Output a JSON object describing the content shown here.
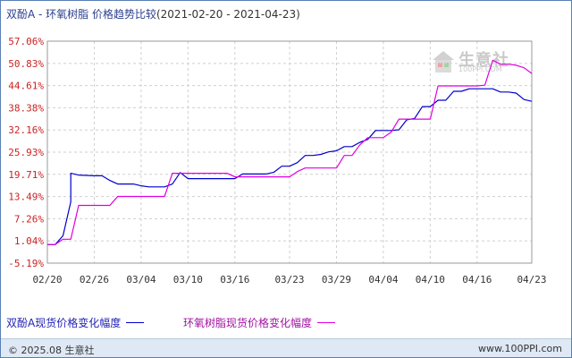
{
  "header": {
    "title": "双酚A - 环氧树脂 价格趋势比较",
    "date_range": "(2021-02-20 - 2021-04-23)"
  },
  "watermark": {
    "brand": "生意社",
    "url": "100PPI.COM"
  },
  "footer": {
    "copyright": "© 2025.08 生意社",
    "url": "www.100PPI.com"
  },
  "colors": {
    "bpa": "#0000cc",
    "epoxy": "#e000e0",
    "grid": "#cfcfcf",
    "axis_label": "#cc2222"
  },
  "chart_data": {
    "type": "line",
    "title": "双酚A - 环氧树脂 价格趋势比较",
    "xlabel": "",
    "ylabel": "",
    "y_ticks": [
      "57.06%",
      "50.83%",
      "44.61%",
      "38.38%",
      "32.16%",
      "25.93%",
      "19.71%",
      "13.49%",
      "7.26%",
      "1.04%",
      "-5.19%"
    ],
    "y_tick_values": [
      57.06,
      50.83,
      44.61,
      38.38,
      32.16,
      25.93,
      19.71,
      13.49,
      7.26,
      1.04,
      -5.19
    ],
    "ylim": [
      -5.19,
      57.06
    ],
    "x_ticks": [
      "02/20",
      "02/26",
      "03/04",
      "03/10",
      "03/16",
      "03/23",
      "03/29",
      "04/04",
      "04/10",
      "04/16",
      "04/23"
    ],
    "x_tick_values": [
      "2021-02-20",
      "2021-02-26",
      "2021-03-04",
      "2021-03-10",
      "2021-03-16",
      "2021-03-23",
      "2021-03-29",
      "2021-04-04",
      "2021-04-10",
      "2021-04-16",
      "2021-04-23"
    ],
    "xlim": [
      "2021-02-20",
      "2021-04-23"
    ],
    "grid": true,
    "legend": "bottom",
    "series": [
      {
        "name": "双酚A现货价格变化幅度",
        "points": [
          [
            "2021-02-20",
            0
          ],
          [
            "2021-02-21",
            0
          ],
          [
            "2021-02-22",
            2.5
          ],
          [
            "2021-02-23",
            12
          ],
          [
            "2021-02-23",
            20
          ],
          [
            "2021-02-24",
            19.5
          ],
          [
            "2021-02-26",
            19.3
          ],
          [
            "2021-02-27",
            19.3
          ],
          [
            "2021-02-28",
            18
          ],
          [
            "2021-03-01",
            17
          ],
          [
            "2021-03-03",
            17
          ],
          [
            "2021-03-04",
            16.5
          ],
          [
            "2021-03-05",
            16.2
          ],
          [
            "2021-03-07",
            16.2
          ],
          [
            "2021-03-08",
            17
          ],
          [
            "2021-03-09",
            20.2
          ],
          [
            "2021-03-10",
            18.5
          ],
          [
            "2021-03-12",
            18.5
          ],
          [
            "2021-03-16",
            18.5
          ],
          [
            "2021-03-17",
            19.8
          ],
          [
            "2021-03-20",
            19.8
          ],
          [
            "2021-03-21",
            20.3
          ],
          [
            "2021-03-22",
            22
          ],
          [
            "2021-03-23",
            22
          ],
          [
            "2021-03-24",
            23
          ],
          [
            "2021-03-25",
            25
          ],
          [
            "2021-03-26",
            25
          ],
          [
            "2021-03-27",
            25.3
          ],
          [
            "2021-03-28",
            26
          ],
          [
            "2021-03-29",
            26.3
          ],
          [
            "2021-03-30",
            27.5
          ],
          [
            "2021-03-31",
            27.5
          ],
          [
            "2021-04-01",
            28.7
          ],
          [
            "2021-04-02",
            29.5
          ],
          [
            "2021-04-03",
            32
          ],
          [
            "2021-04-04",
            32
          ],
          [
            "2021-04-05",
            32
          ],
          [
            "2021-04-06",
            32.2
          ],
          [
            "2021-04-07",
            35
          ],
          [
            "2021-04-08",
            35.4
          ],
          [
            "2021-04-09",
            38.7
          ],
          [
            "2021-04-10",
            38.7
          ],
          [
            "2021-04-11",
            40.5
          ],
          [
            "2021-04-12",
            40.5
          ],
          [
            "2021-04-13",
            43
          ],
          [
            "2021-04-14",
            43
          ],
          [
            "2021-04-15",
            43.7
          ],
          [
            "2021-04-16",
            43.7
          ],
          [
            "2021-04-18",
            43.7
          ],
          [
            "2021-04-19",
            42.8
          ],
          [
            "2021-04-20",
            42.8
          ],
          [
            "2021-04-21",
            42.5
          ],
          [
            "2021-04-22",
            40.7
          ],
          [
            "2021-04-23",
            40.2
          ]
        ]
      },
      {
        "name": "环氧树脂现货价格变化幅度",
        "points": [
          [
            "2021-02-20",
            0
          ],
          [
            "2021-02-21",
            0
          ],
          [
            "2021-02-22",
            1.5
          ],
          [
            "2021-02-23",
            1.5
          ],
          [
            "2021-02-24",
            11
          ],
          [
            "2021-02-25",
            11
          ],
          [
            "2021-02-27",
            11
          ],
          [
            "2021-02-28",
            11
          ],
          [
            "2021-03-01",
            13.5
          ],
          [
            "2021-03-03",
            13.5
          ],
          [
            "2021-03-05",
            13.5
          ],
          [
            "2021-03-07",
            13.5
          ],
          [
            "2021-03-08",
            20
          ],
          [
            "2021-03-10",
            20
          ],
          [
            "2021-03-12",
            20
          ],
          [
            "2021-03-15",
            20
          ],
          [
            "2021-03-16",
            19
          ],
          [
            "2021-03-17",
            19
          ],
          [
            "2021-03-20",
            19
          ],
          [
            "2021-03-22",
            19
          ],
          [
            "2021-03-23",
            19
          ],
          [
            "2021-03-24",
            20.5
          ],
          [
            "2021-03-25",
            21.5
          ],
          [
            "2021-03-28",
            21.5
          ],
          [
            "2021-03-29",
            21.5
          ],
          [
            "2021-03-30",
            25
          ],
          [
            "2021-03-31",
            25
          ],
          [
            "2021-04-01",
            28
          ],
          [
            "2021-04-02",
            30
          ],
          [
            "2021-04-03",
            30
          ],
          [
            "2021-04-04",
            30
          ],
          [
            "2021-04-05",
            31.5
          ],
          [
            "2021-04-06",
            35.2
          ],
          [
            "2021-04-07",
            35.2
          ],
          [
            "2021-04-09",
            35.2
          ],
          [
            "2021-04-10",
            35.2
          ],
          [
            "2021-04-11",
            44.5
          ],
          [
            "2021-04-13",
            44.5
          ],
          [
            "2021-04-15",
            44.5
          ],
          [
            "2021-04-16",
            44.5
          ],
          [
            "2021-04-17",
            44.7
          ],
          [
            "2021-04-18",
            51.7
          ],
          [
            "2021-04-19",
            50.6
          ],
          [
            "2021-04-20",
            50.6
          ],
          [
            "2021-04-21",
            50.3
          ],
          [
            "2021-04-22",
            49.6
          ],
          [
            "2021-04-23",
            48
          ]
        ]
      }
    ]
  }
}
